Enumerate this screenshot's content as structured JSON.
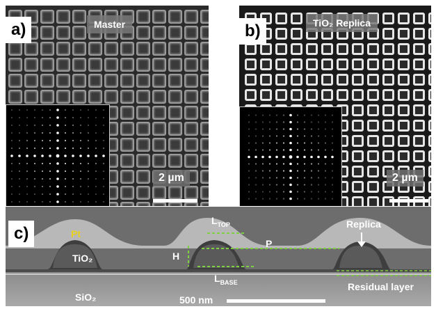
{
  "panel_a": {
    "letter": "a)",
    "title": "Master",
    "scale": "2 µm"
  },
  "panel_b": {
    "letter": "b)",
    "title": "TiO₂ Replica",
    "scale": "2 µm"
  },
  "panel_c": {
    "letter": "c)",
    "pt": "Pt",
    "tio2": "TiO₂",
    "sio2": "SiO₂",
    "h": "H",
    "ltop": "L",
    "ltop_sub": "TOP",
    "lbase": "L",
    "lbase_sub": "BASE",
    "p": "P",
    "replica": "Replica",
    "residual": "Residual layer",
    "scale": "500 nm"
  },
  "colors": {
    "pt": "#e8d020",
    "arrow": "#7fd040"
  }
}
